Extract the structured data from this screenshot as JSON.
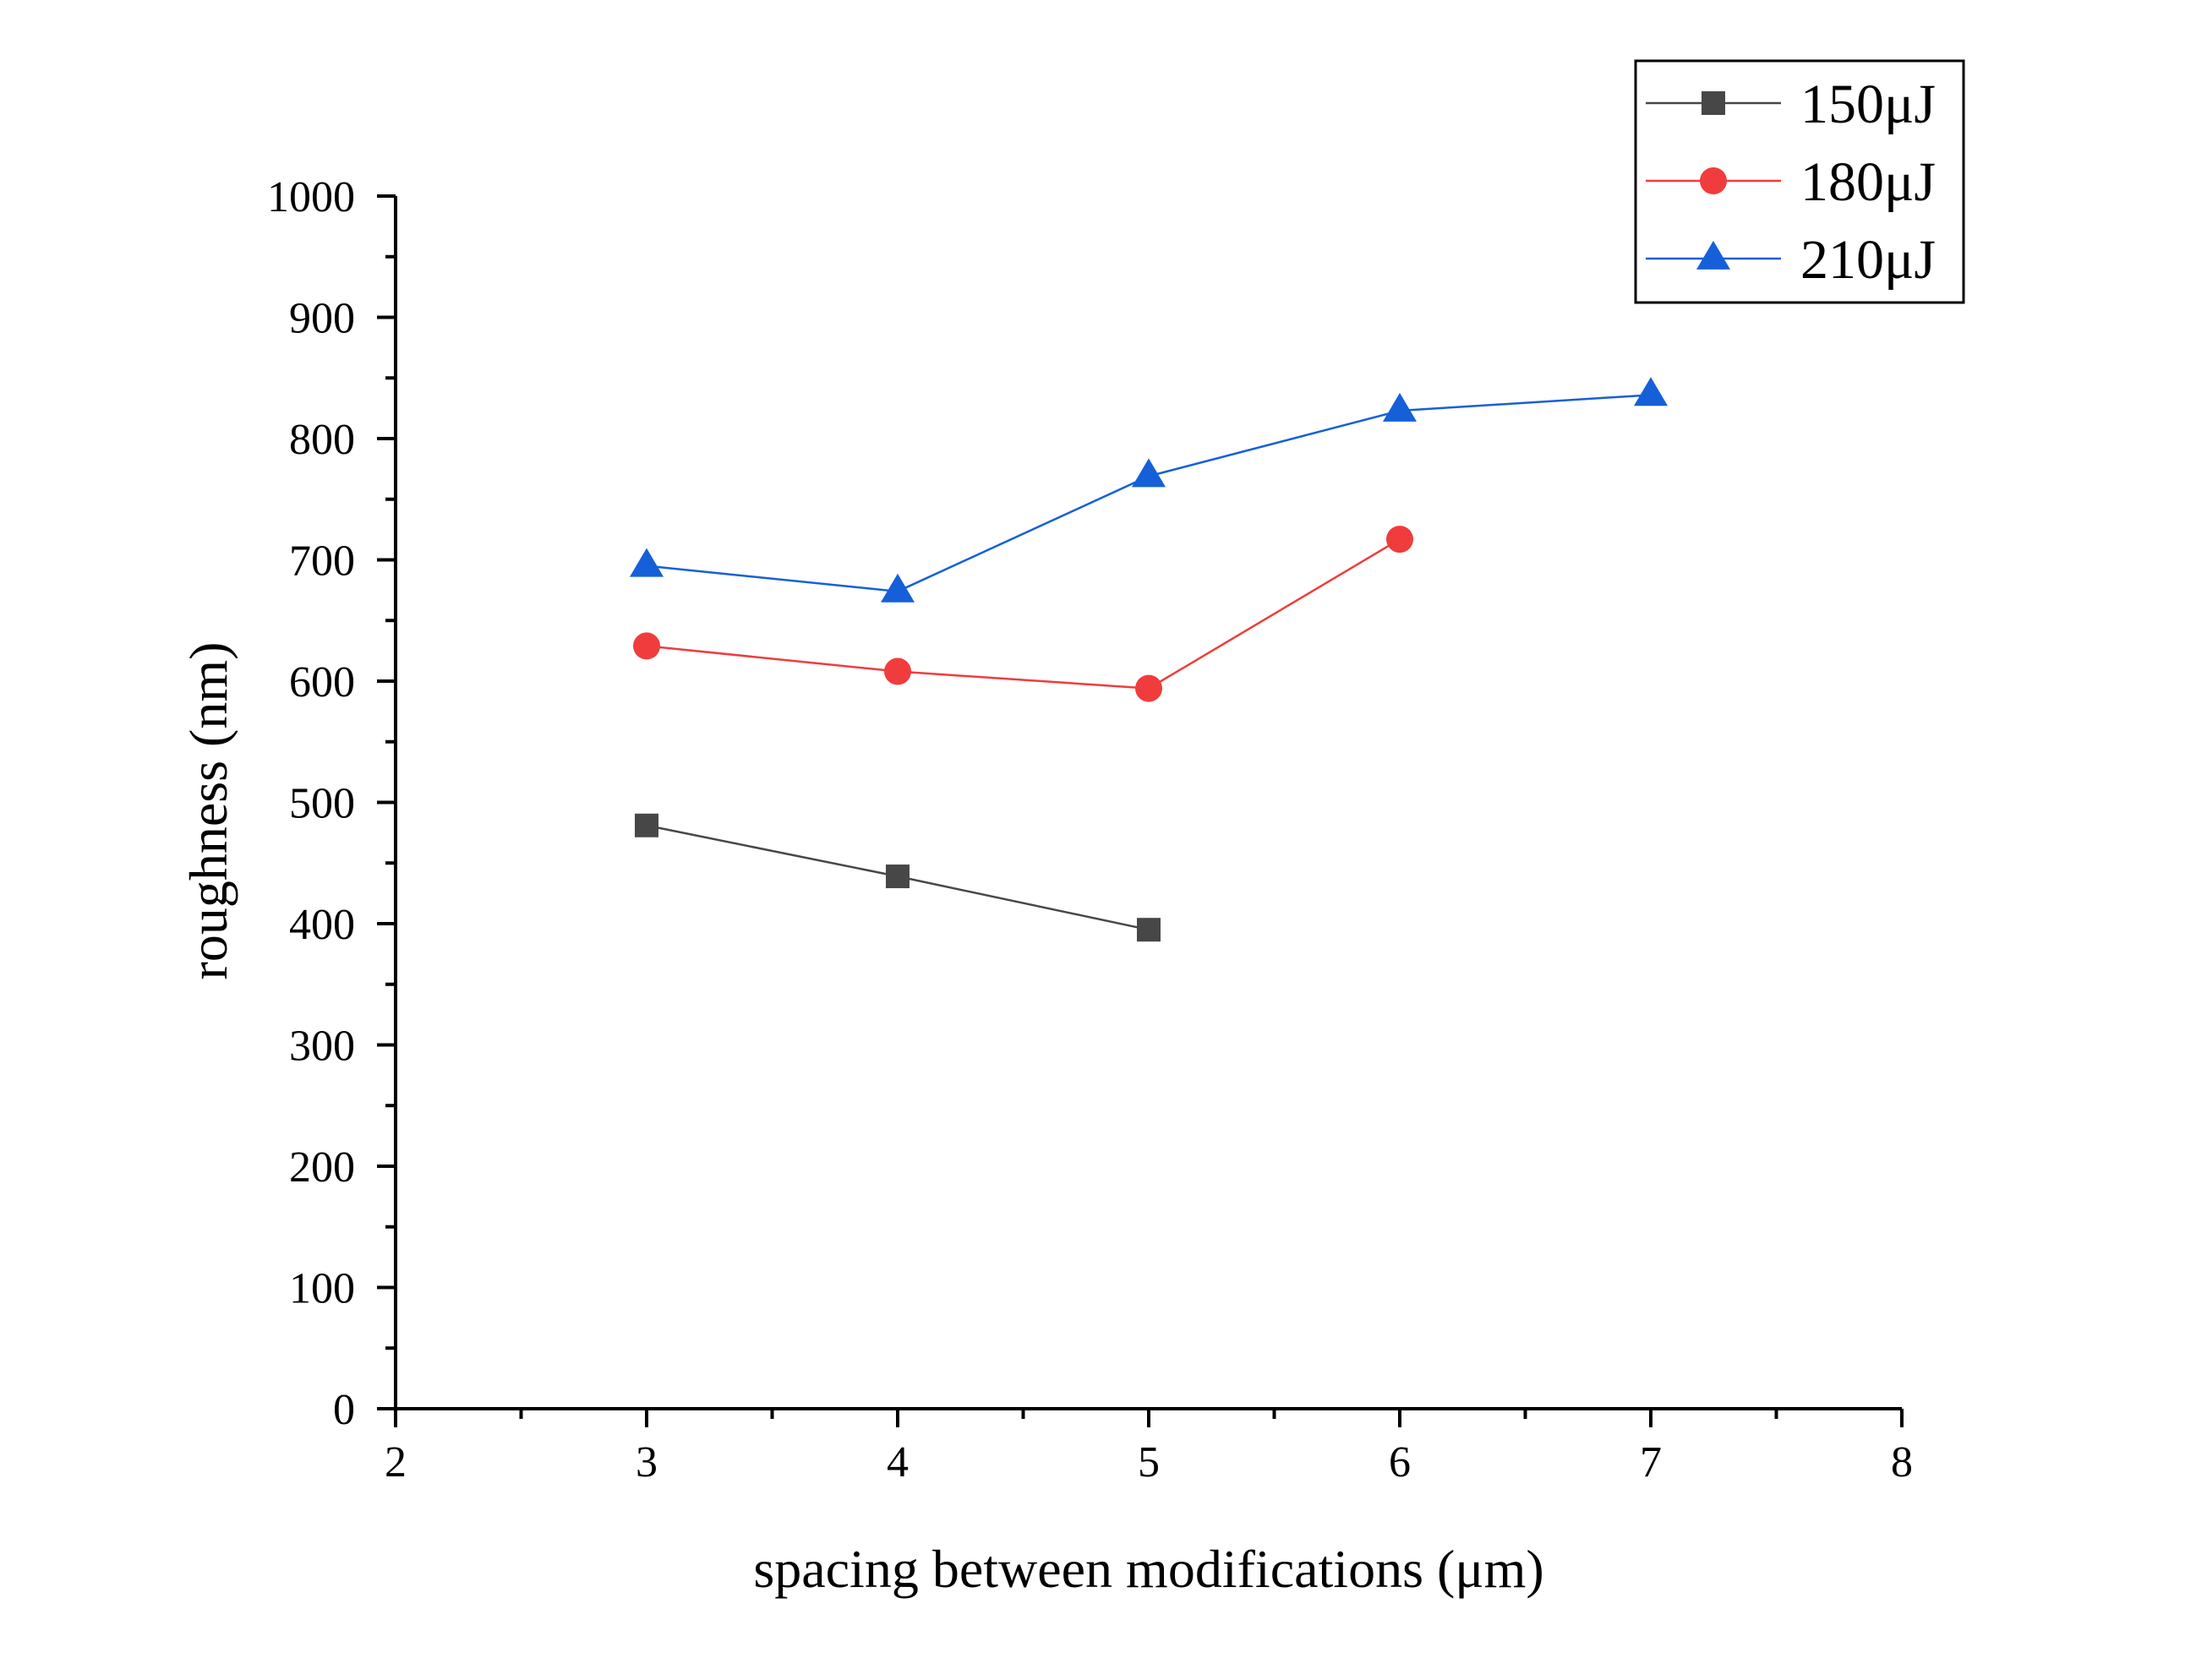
{
  "chart_data": {
    "type": "line",
    "title": "",
    "xlabel": "spacing between modifications (μm)",
    "ylabel": "roughness (nm)",
    "xlim": [
      2,
      8
    ],
    "ylim": [
      0,
      1000
    ],
    "xticks": [
      2,
      3,
      4,
      5,
      6,
      7,
      8
    ],
    "yticks": [
      0,
      100,
      200,
      300,
      400,
      500,
      600,
      700,
      800,
      900,
      1000
    ],
    "grid": false,
    "legend_position": "top-right",
    "series": [
      {
        "name": "150μJ",
        "color": "#474747",
        "marker": "square",
        "x": [
          3,
          4,
          5
        ],
        "y": [
          481,
          439,
          395
        ]
      },
      {
        "name": "180μJ",
        "color": "#f03c3c",
        "marker": "circle",
        "x": [
          3,
          4,
          5,
          6
        ],
        "y": [
          629,
          608,
          594,
          717
        ]
      },
      {
        "name": "210μJ",
        "color": "#1560d8",
        "marker": "triangle",
        "x": [
          3,
          4,
          5,
          6,
          7
        ],
        "y": [
          695,
          674,
          769,
          823,
          836
        ]
      }
    ]
  }
}
